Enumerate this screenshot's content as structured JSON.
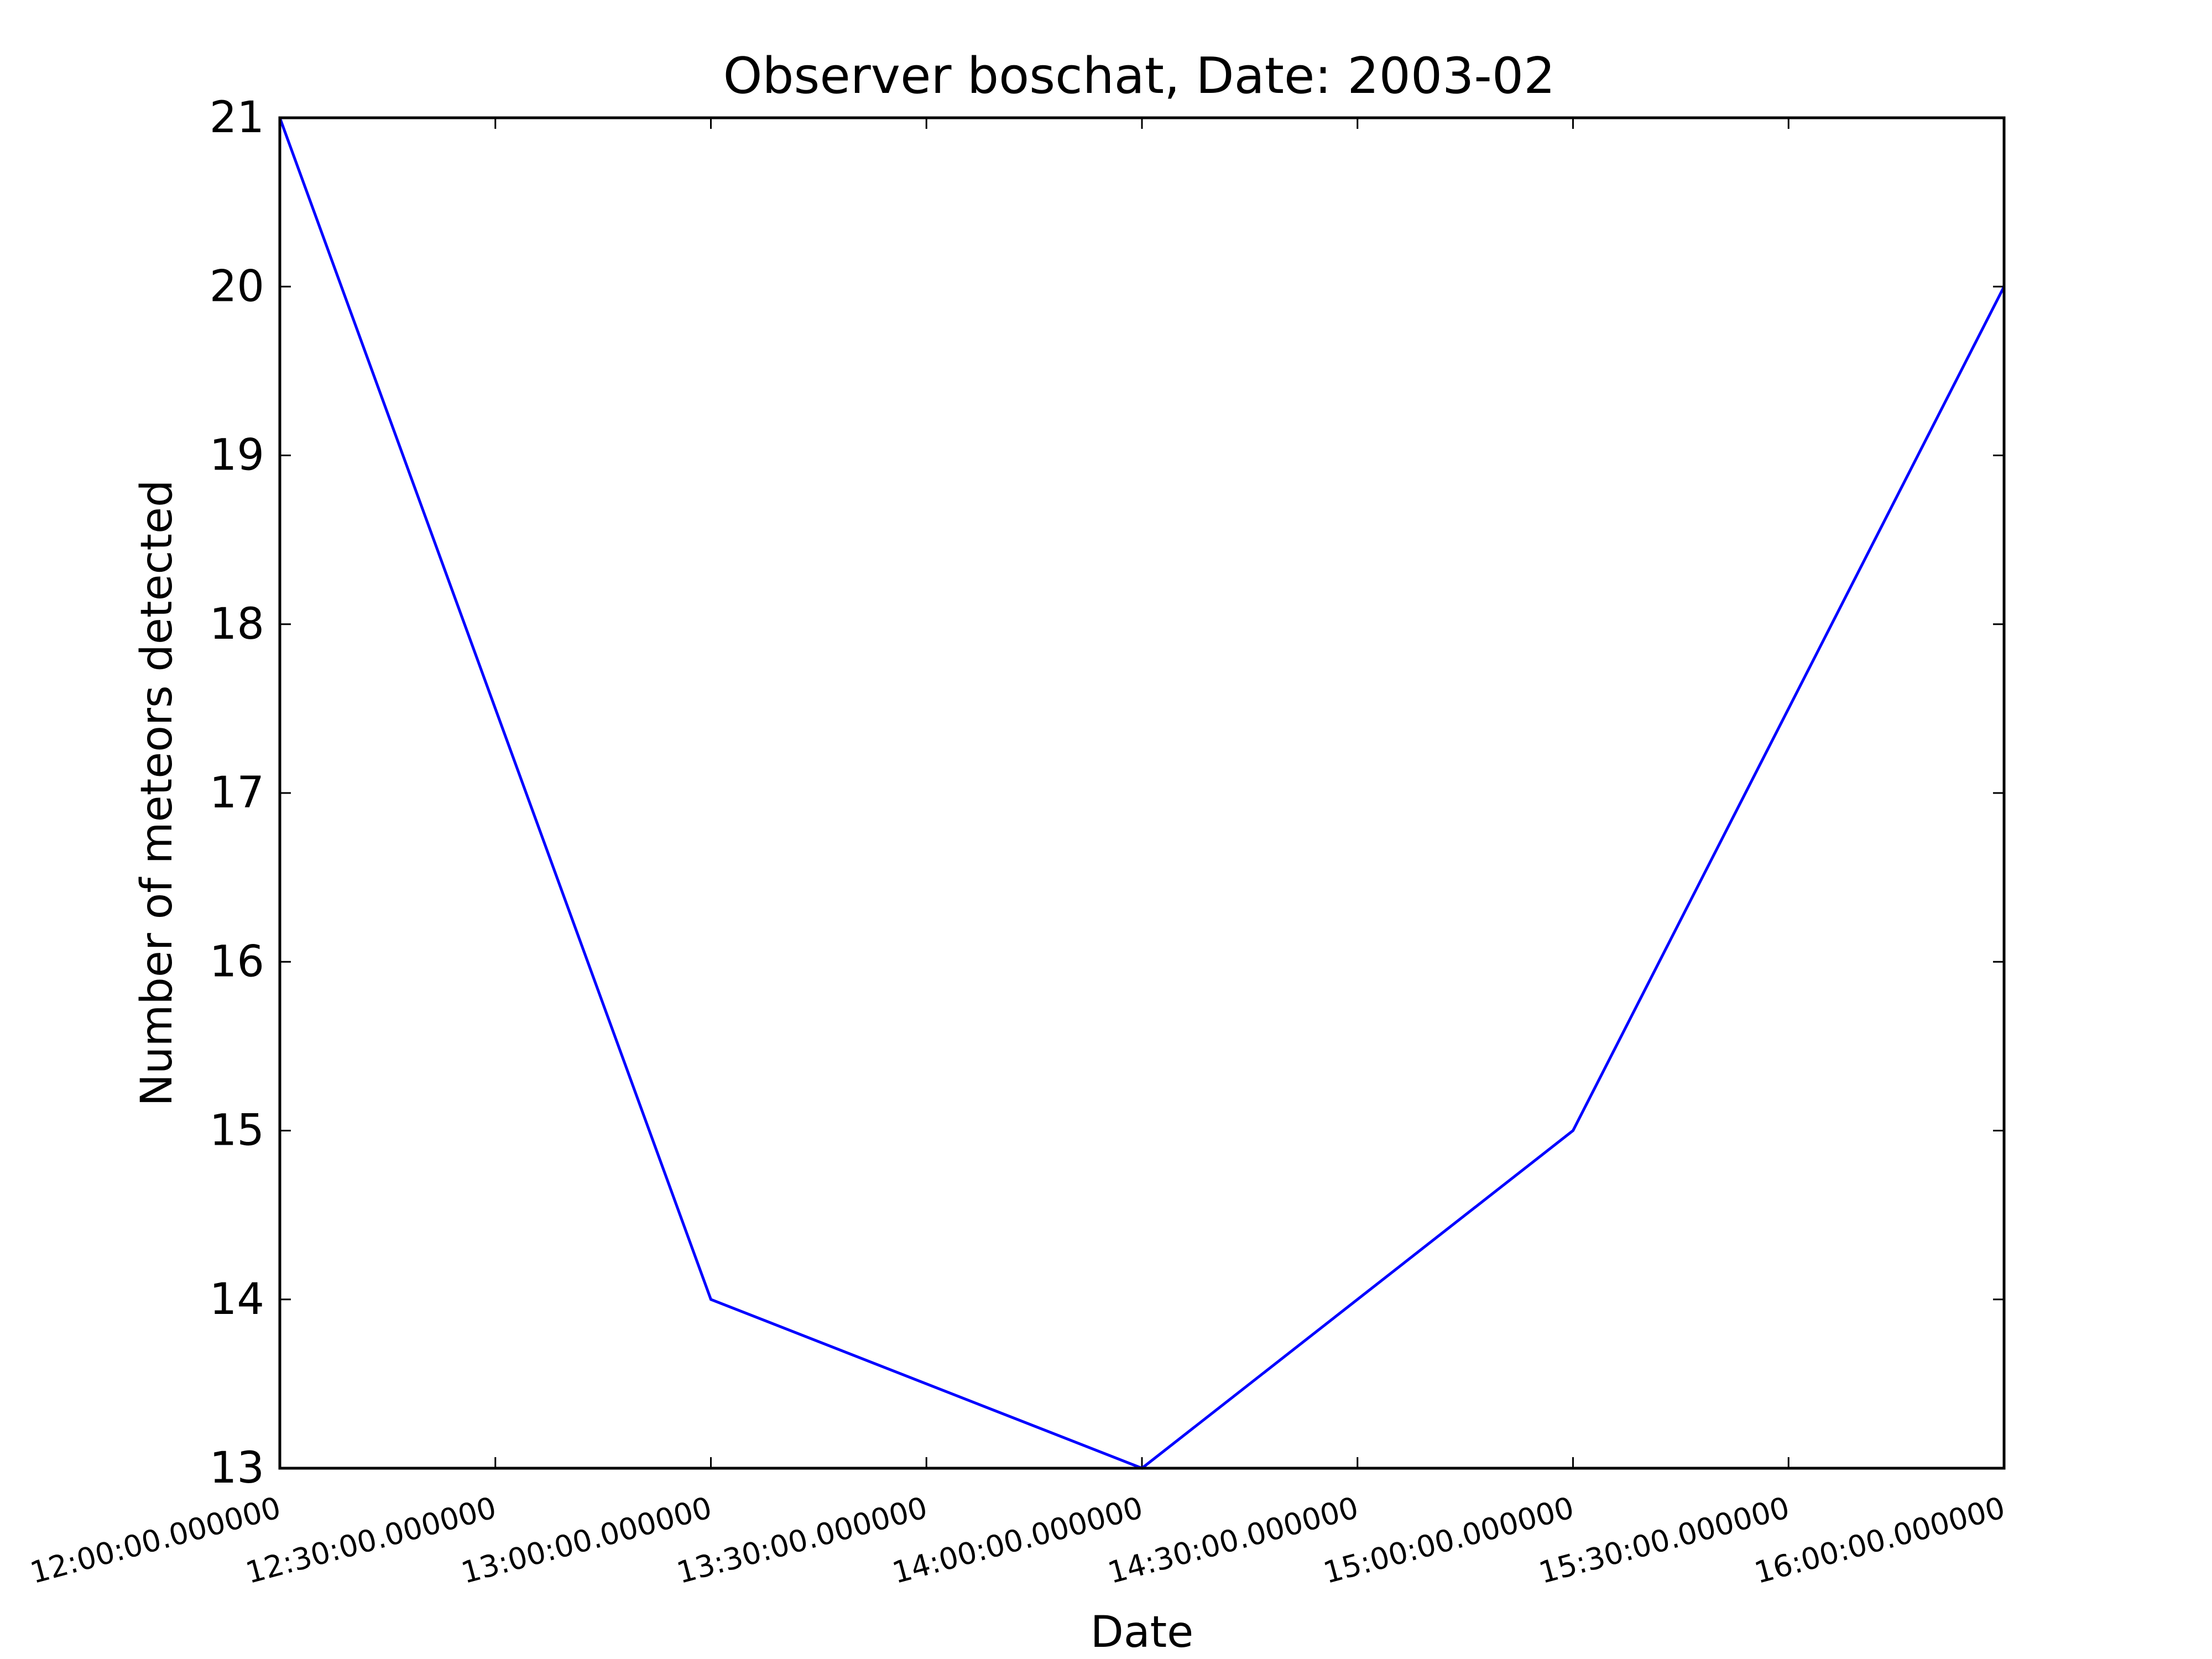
{
  "chart_data": {
    "type": "line",
    "title": "Observer boschat, Date: 2003-02",
    "xlabel": "Date",
    "ylabel": "Number of meteors detected",
    "x_tick_labels": [
      "12:00:00.000000",
      "12:30:00.000000",
      "13:00:00.000000",
      "13:30:00.000000",
      "14:00:00.000000",
      "14:30:00.000000",
      "15:00:00.000000",
      "15:30:00.000000",
      "16:00:00.000000"
    ],
    "y_tick_labels": [
      "13",
      "14",
      "15",
      "16",
      "17",
      "18",
      "19",
      "20",
      "21"
    ],
    "x_ticks": [
      "12:00",
      "12:30",
      "13:00",
      "13:30",
      "14:00",
      "14:30",
      "15:00",
      "15:30",
      "16:00"
    ],
    "y_ticks": [
      13,
      14,
      15,
      16,
      17,
      18,
      19,
      20,
      21
    ],
    "xlim": [
      "12:00",
      "16:00"
    ],
    "ylim": [
      13,
      21
    ],
    "grid": false,
    "series": [
      {
        "x": [
          "12:00",
          "13:00",
          "14:00",
          "15:00",
          "16:00"
        ],
        "y": [
          21,
          14,
          13,
          15,
          20
        ],
        "color": "#0000ff"
      }
    ]
  }
}
